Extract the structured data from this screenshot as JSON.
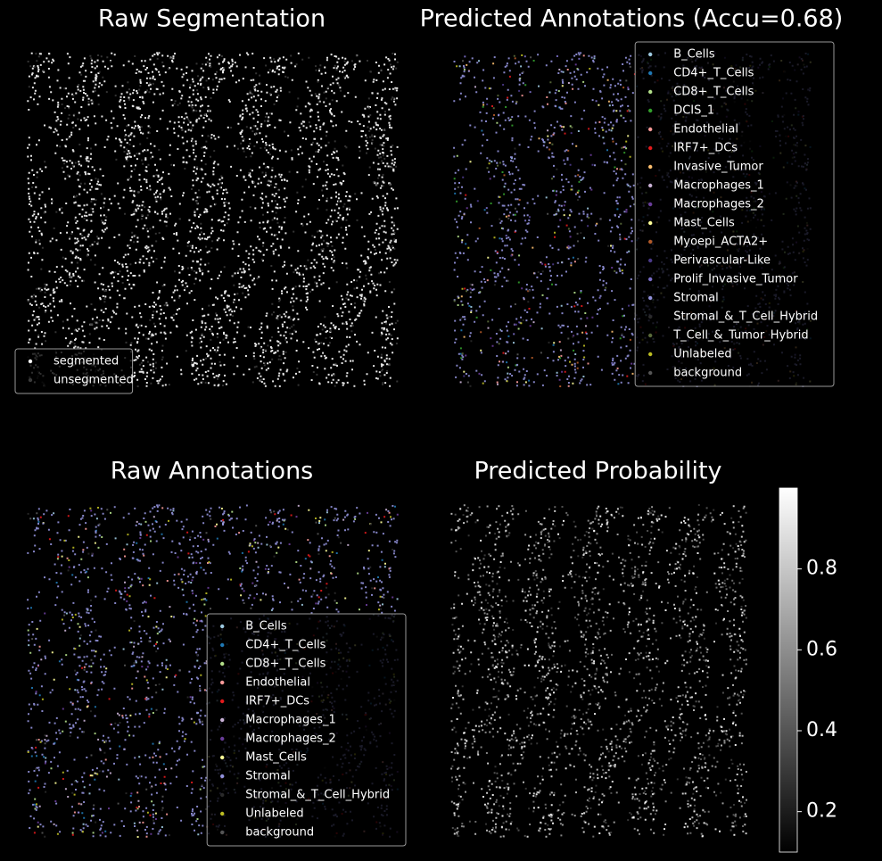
{
  "chart_data": [
    {
      "type": "scatter",
      "title": "Raw Segmentation",
      "legend": "lower left",
      "series": [
        {
          "name": "segmented",
          "color": "#ffffff"
        },
        {
          "name": "unsegmented",
          "color": "#3a3a3a"
        }
      ]
    },
    {
      "type": "scatter",
      "title": "Predicted Annotations (Accu=0.68)",
      "legend": "upper right",
      "series": [
        {
          "name": "B_Cells",
          "color": "#9ecae1"
        },
        {
          "name": "CD4+_T_Cells",
          "color": "#1f78b4"
        },
        {
          "name": "CD8+_T_Cells",
          "color": "#b2df8a"
        },
        {
          "name": "DCIS_1",
          "color": "#33a02c"
        },
        {
          "name": "Endothelial",
          "color": "#fb9a99"
        },
        {
          "name": "IRF7+_DCs",
          "color": "#e31a1c"
        },
        {
          "name": "Invasive_Tumor",
          "color": "#fdbf6f"
        },
        {
          "name": "Macrophages_1",
          "color": "#cab2d6"
        },
        {
          "name": "Macrophages_2",
          "color": "#6a3d9a"
        },
        {
          "name": "Mast_Cells",
          "color": "#ffff99"
        },
        {
          "name": "Myoepi_ACTA2+",
          "color": "#b15928"
        },
        {
          "name": "Perivascular-Like",
          "color": "#4b3a8a"
        },
        {
          "name": "Prolif_Invasive_Tumor",
          "color": "#7b6fc9"
        },
        {
          "name": "Stromal",
          "color": "#9292dc"
        },
        {
          "name": "Stromal_&_T_Cell_Hybrid",
          "color": "#2a2a2a"
        },
        {
          "name": "T_Cell_&_Tumor_Hybrid",
          "color": "#5a6a3a"
        },
        {
          "name": "Unlabeled",
          "color": "#bcbd22"
        },
        {
          "name": "background",
          "color": "#555555"
        }
      ]
    },
    {
      "type": "scatter",
      "title": "Raw Annotations",
      "legend": "lower right",
      "series": [
        {
          "name": "B_Cells",
          "color": "#9ecae1"
        },
        {
          "name": "CD4+_T_Cells",
          "color": "#1f78b4"
        },
        {
          "name": "CD8+_T_Cells",
          "color": "#b2df8a"
        },
        {
          "name": "Endothelial",
          "color": "#fb9a99"
        },
        {
          "name": "IRF7+_DCs",
          "color": "#e31a1c"
        },
        {
          "name": "Macrophages_1",
          "color": "#cab2d6"
        },
        {
          "name": "Macrophages_2",
          "color": "#6a3d9a"
        },
        {
          "name": "Mast_Cells",
          "color": "#ffff99"
        },
        {
          "name": "Stromal",
          "color": "#9292dc"
        },
        {
          "name": "Stromal_&_T_Cell_Hybrid",
          "color": "#2a2a2a"
        },
        {
          "name": "Unlabeled",
          "color": "#bcbd22"
        },
        {
          "name": "background",
          "color": "#555555"
        }
      ]
    },
    {
      "type": "scatter",
      "title": "Predicted Probability",
      "cmap": "gray",
      "colorbar": {
        "ylim": [
          0.1,
          1.0
        ],
        "yticks": [
          0.2,
          0.4,
          0.6,
          0.8
        ]
      }
    }
  ]
}
